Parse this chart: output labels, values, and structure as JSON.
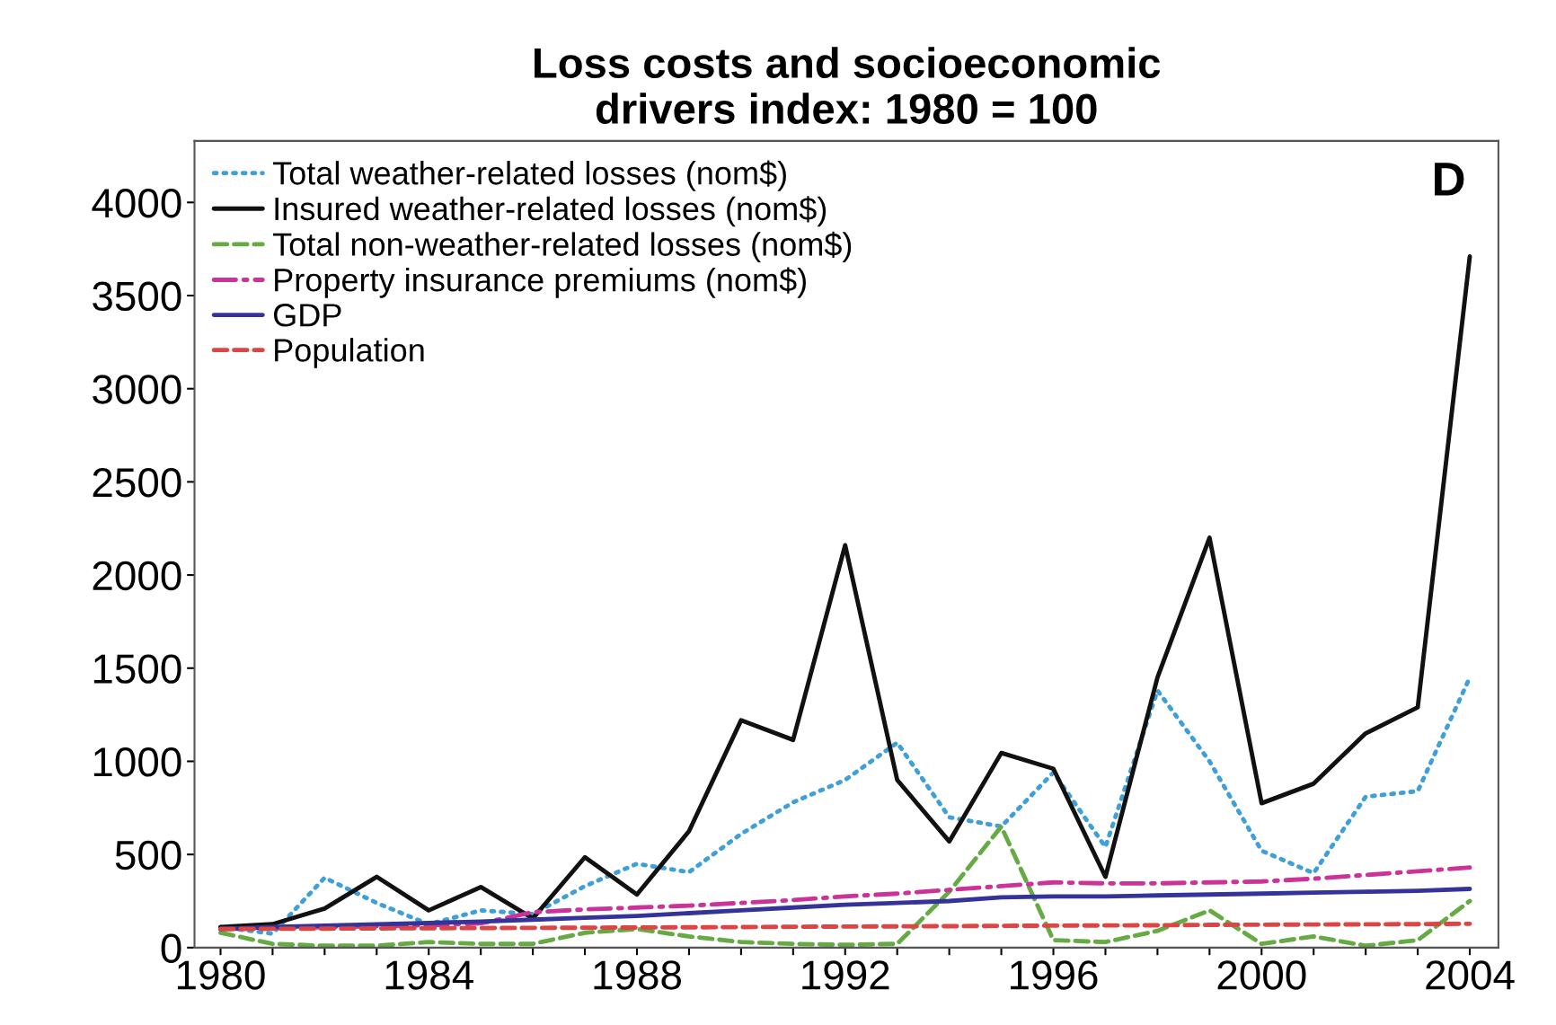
{
  "chart_data": {
    "type": "line",
    "title": "Loss costs and socioeconomic\ndrivers index: 1980 = 100",
    "annotations": [
      "D"
    ],
    "x": [
      1980,
      1981,
      1982,
      1983,
      1984,
      1985,
      1986,
      1987,
      1988,
      1989,
      1990,
      1991,
      1992,
      1993,
      1994,
      1995,
      1996,
      1997,
      1998,
      1999,
      2000,
      2001,
      2002,
      2003,
      2004
    ],
    "series": [
      {
        "name": "Total weather-related losses (nom$)",
        "color": "#3fa0d8",
        "line_style": "dotted",
        "values": [
          110,
          75,
          375,
          240,
          125,
          200,
          180,
          330,
          450,
          405,
          610,
          780,
          900,
          1100,
          700,
          650,
          940,
          540,
          1380,
          1000,
          520,
          400,
          810,
          840,
          1450
        ]
      },
      {
        "name": "Insured weather-related losses (nom$)",
        "color": "#111111",
        "line_style": "solid",
        "values": [
          110,
          126,
          210,
          380,
          200,
          325,
          157,
          485,
          285,
          625,
          1220,
          1115,
          2160,
          900,
          570,
          1045,
          960,
          380,
          1450,
          2200,
          775,
          880,
          1150,
          1290,
          3710
        ]
      },
      {
        "name": "Total non-weather-related losses (nom$)",
        "color": "#66aa44",
        "line_style": "dashed",
        "values": [
          80,
          20,
          10,
          10,
          30,
          20,
          20,
          80,
          100,
          60,
          30,
          20,
          15,
          20,
          300,
          650,
          40,
          30,
          90,
          200,
          20,
          60,
          10,
          40,
          250
        ]
      },
      {
        "name": "Property insurance premiums (nom$)",
        "color": "#cc3399",
        "line_style": "dashdot",
        "values": [
          100,
          105,
          110,
          115,
          120,
          130,
          190,
          205,
          215,
          225,
          240,
          255,
          275,
          290,
          310,
          330,
          350,
          345,
          345,
          350,
          355,
          370,
          390,
          410,
          430
        ]
      },
      {
        "name": "GDP",
        "color": "#333399",
        "line_style": "solid",
        "values": [
          100,
          110,
          118,
          125,
          132,
          140,
          150,
          160,
          170,
          185,
          200,
          215,
          230,
          240,
          250,
          270,
          275,
          275,
          280,
          285,
          290,
          295,
          300,
          305,
          315
        ]
      },
      {
        "name": "Population",
        "color": "#dd4444",
        "line_style": "dashed",
        "values": [
          100,
          101,
          102,
          103,
          104,
          105,
          106,
          107,
          108,
          109,
          110,
          112,
          113,
          114,
          115,
          117,
          118,
          119,
          120,
          122,
          123,
          124,
          125,
          126,
          128
        ]
      }
    ],
    "xlim": [
      1979.5,
      2004.55
    ],
    "ylim": [
      0,
      4330
    ],
    "xticks": [
      1980,
      {
        "value": 1981,
        "label": null
      },
      {
        "value": 1982,
        "label": null
      },
      {
        "value": 1983,
        "label": null
      },
      1984,
      {
        "value": 1985,
        "label": null
      },
      {
        "value": 1986,
        "label": null
      },
      {
        "value": 1987,
        "label": null
      },
      1988,
      {
        "value": 1989,
        "label": null
      },
      {
        "value": 1990,
        "label": null
      },
      {
        "value": 1991,
        "label": null
      },
      1992,
      {
        "value": 1993,
        "label": null
      },
      {
        "value": 1994,
        "label": null
      },
      {
        "value": 1995,
        "label": null
      },
      1996,
      {
        "value": 1997,
        "label": null
      },
      {
        "value": 1998,
        "label": null
      },
      {
        "value": 1999,
        "label": null
      },
      2000,
      {
        "value": 2001,
        "label": null
      },
      {
        "value": 2002,
        "label": null
      },
      {
        "value": 2003,
        "label": null
      },
      2004
    ],
    "yticks": [
      0,
      500,
      1000,
      1500,
      2000,
      2500,
      3000,
      3500,
      4000
    ],
    "grid": false,
    "legend": "top left"
  }
}
